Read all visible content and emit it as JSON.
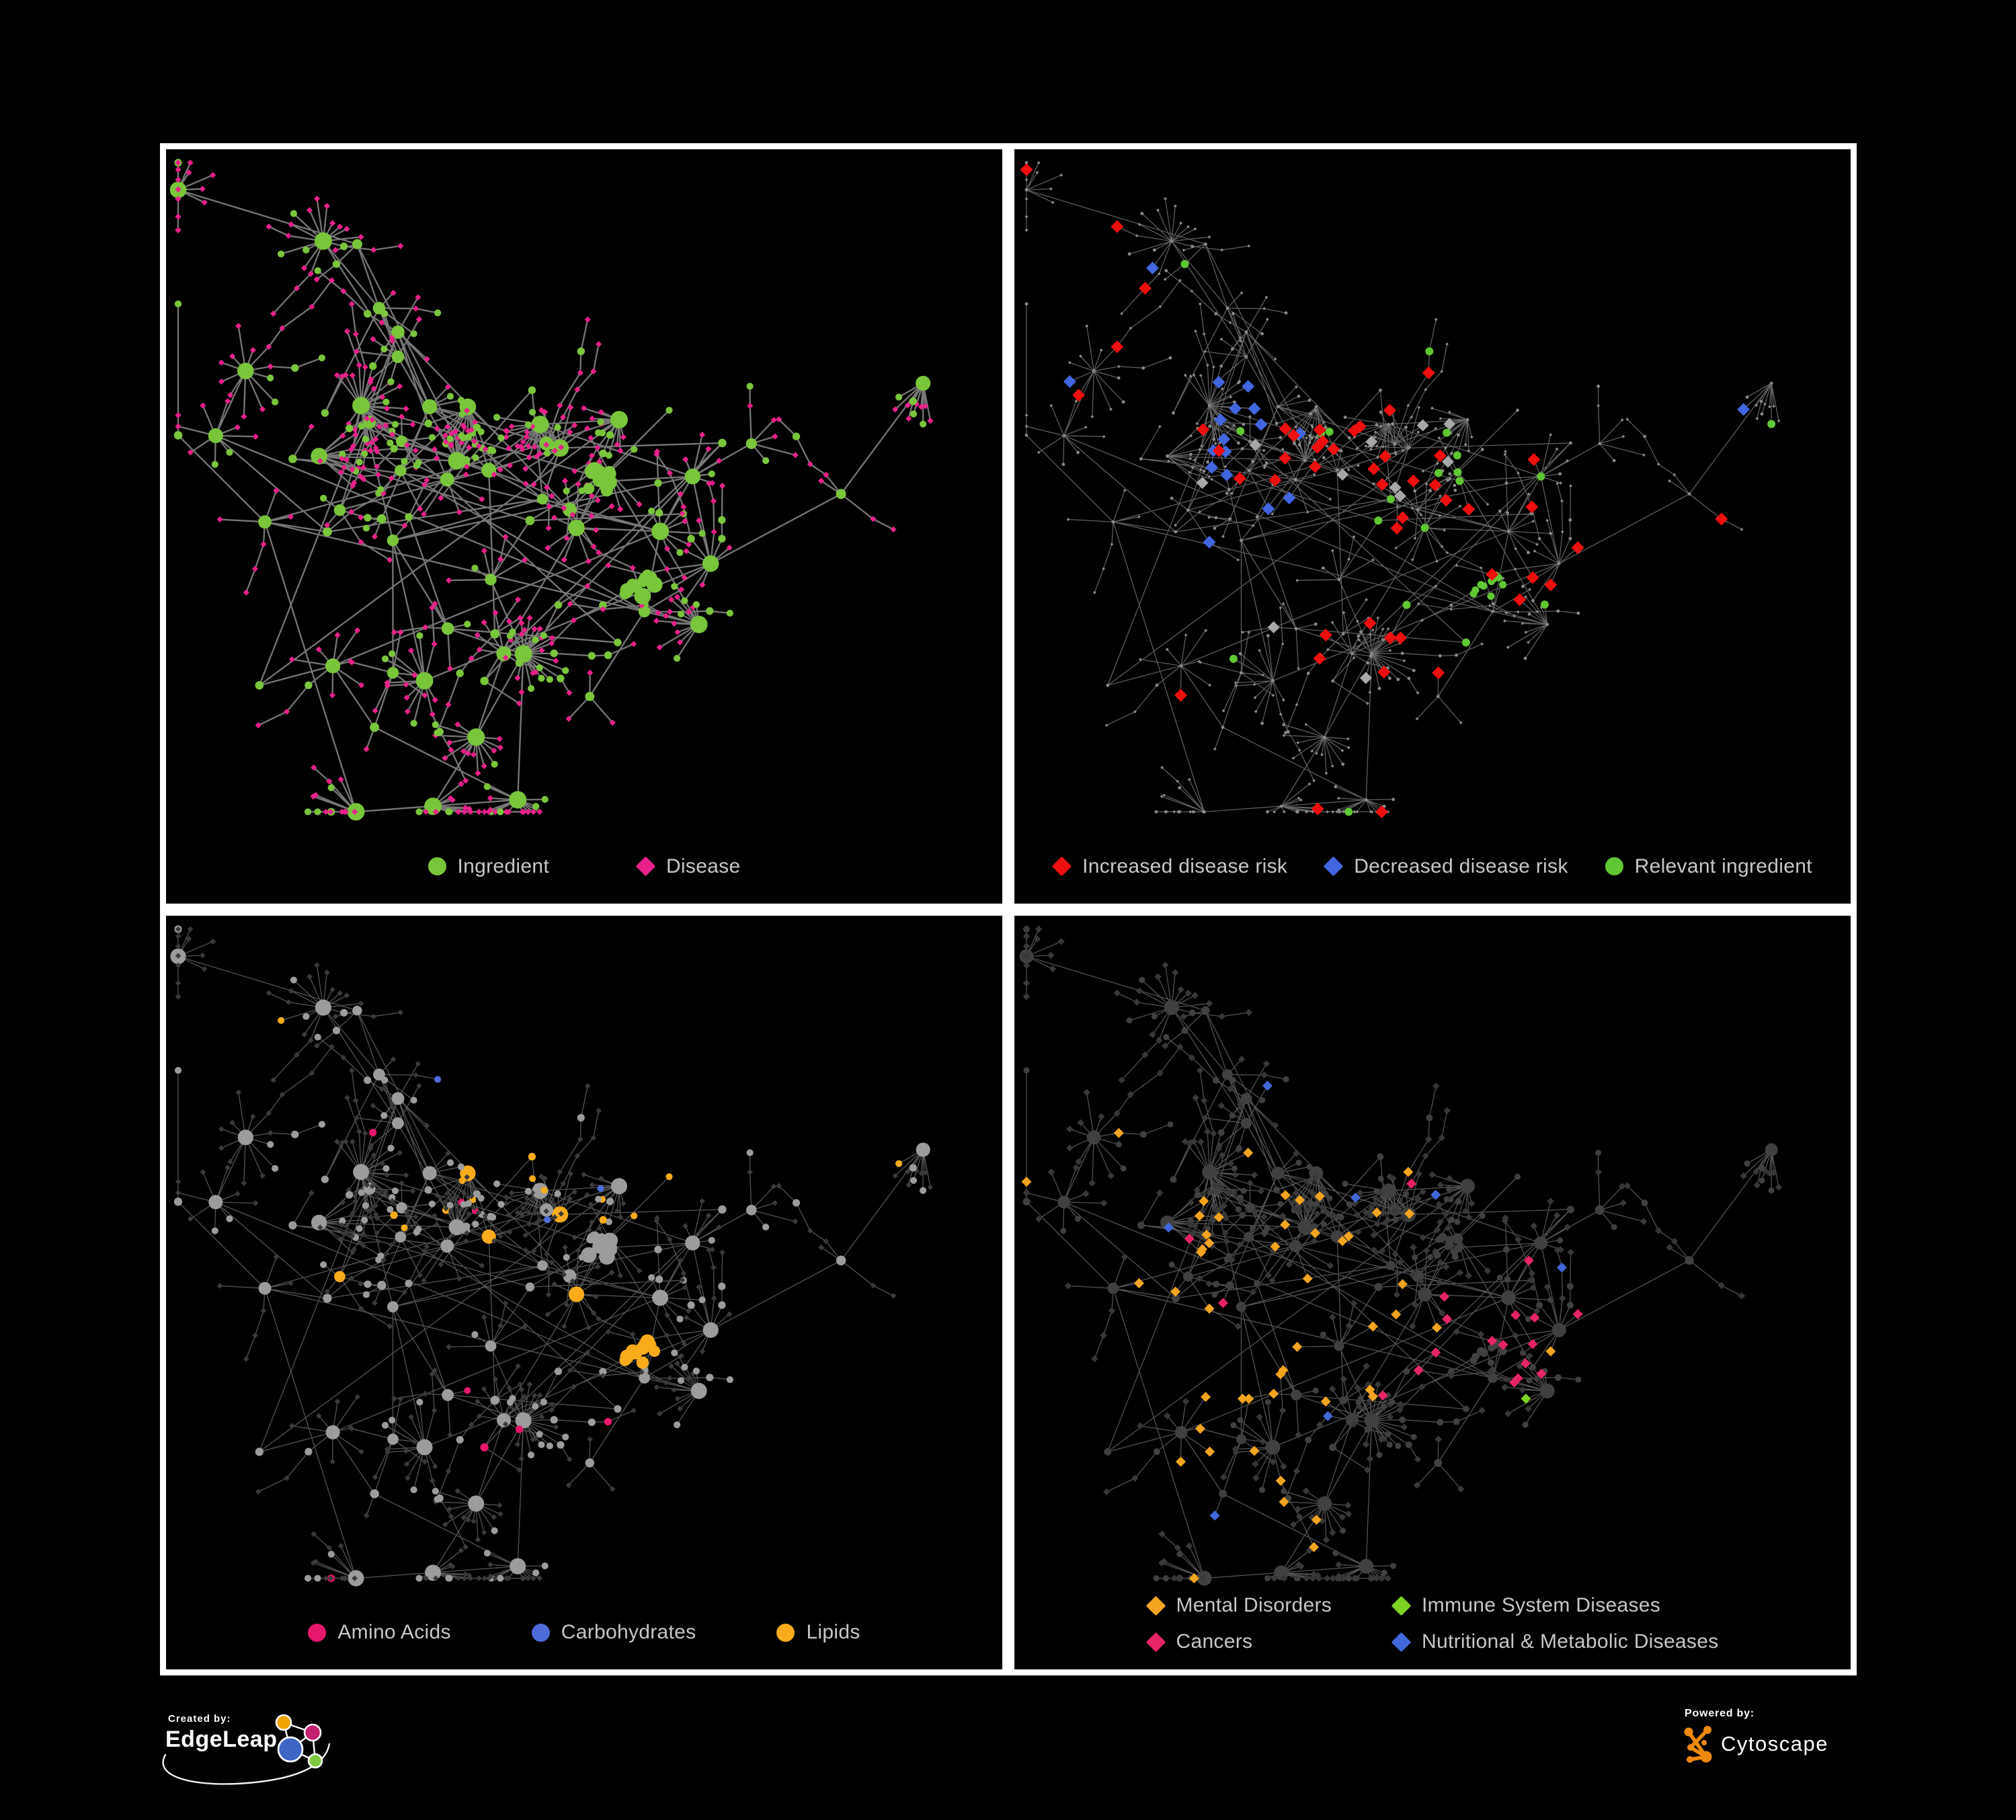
{
  "page": {
    "background": "#000000",
    "panel_border": "#FFFFFF",
    "legend_text_color": "#C7C7C7"
  },
  "panels": [
    {
      "name": "ingredient-disease-network",
      "legend": [
        {
          "shape": "circle",
          "color": "#79C63B",
          "label": "Ingredient"
        },
        {
          "shape": "diamond",
          "color": "#E8218B",
          "label": "Disease"
        }
      ]
    },
    {
      "name": "disease-risk-network",
      "legend": [
        {
          "shape": "diamond",
          "color": "#EE0F0F",
          "label": "Increased disease risk"
        },
        {
          "shape": "diamond",
          "color": "#4166E0",
          "label": "Decreased disease risk"
        },
        {
          "shape": "circle",
          "color": "#5FC832",
          "label": "Relevant ingredient"
        }
      ]
    },
    {
      "name": "ingredient-class-network",
      "legend": [
        {
          "shape": "circle",
          "color": "#E8176E",
          "label": "Amino Acids"
        },
        {
          "shape": "circle",
          "color": "#4E6CD9",
          "label": "Carbohydrates"
        },
        {
          "shape": "circle",
          "color": "#F8AC1C",
          "label": "Lipids"
        }
      ]
    },
    {
      "name": "disease-class-network",
      "legend": [
        {
          "shape": "diamond",
          "color": "#F4A51F",
          "label": "Mental Disorders"
        },
        {
          "shape": "diamond",
          "color": "#7CD321",
          "label": "Immune System Diseases"
        },
        {
          "shape": "diamond",
          "color": "#E72566",
          "label": "Cancers"
        },
        {
          "shape": "diamond",
          "color": "#4168DB",
          "label": "Nutritional & Metabolic Diseases"
        }
      ]
    }
  ],
  "network_style": {
    "edges": [
      {
        "color": "#7C7C7C",
        "width": 2.3,
        "opacity": 0.95
      },
      {
        "color": "#6E6E6E",
        "width": 1.2,
        "opacity": 0.9
      },
      {
        "color": "#9C9C9C",
        "width": 1.25,
        "opacity": 0.55
      },
      {
        "color": "#8C8C8C",
        "width": 1.25,
        "opacity": 0.6
      }
    ],
    "p1": {
      "ingredient": "#79C63B",
      "disease": "#E8218B"
    },
    "p2": {
      "base": "#8A8A8A",
      "increased": "#EE0F0F",
      "decreased": "#4166E0",
      "neutral": "#A8A8A8",
      "relevant": "#5FC832"
    },
    "p3": {
      "diamond": "#3A3A3A",
      "circle": "#9C9C9C",
      "amino": "#E8176E",
      "carb": "#4E6CD9",
      "lipid": "#F8AC1C"
    },
    "p4": {
      "circle": "#404040",
      "diamond": "#383838",
      "mental": "#F4A51F",
      "immune": "#7CD321",
      "cancer": "#E72566",
      "nutritional": "#4168DB"
    }
  },
  "footer": {
    "created_by_label": "Created by:",
    "created_by_brand": "EdgeLeap",
    "powered_by_label": "Powered by:",
    "powered_by_brand": "Cytoscape",
    "edgeleap_colors": {
      "blue": "#3E66C4",
      "orange": "#F0A500",
      "magenta": "#C51F6F",
      "green": "#7FCB3F"
    },
    "cytoscape_orange": "#EE8A0B"
  }
}
